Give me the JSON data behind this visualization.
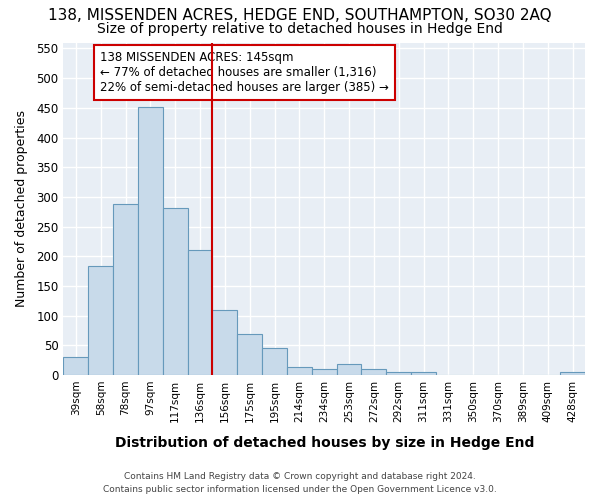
{
  "title": "138, MISSENDEN ACRES, HEDGE END, SOUTHAMPTON, SO30 2AQ",
  "subtitle": "Size of property relative to detached houses in Hedge End",
  "xlabel": "Distribution of detached houses by size in Hedge End",
  "ylabel": "Number of detached properties",
  "footer_line1": "Contains HM Land Registry data © Crown copyright and database right 2024.",
  "footer_line2": "Contains public sector information licensed under the Open Government Licence v3.0.",
  "annotation_line1": "138 MISSENDEN ACRES: 145sqm",
  "annotation_line2": "← 77% of detached houses are smaller (1,316)",
  "annotation_line3": "22% of semi-detached houses are larger (385) →",
  "categories": [
    "39sqm",
    "58sqm",
    "78sqm",
    "97sqm",
    "117sqm",
    "136sqm",
    "156sqm",
    "175sqm",
    "195sqm",
    "214sqm",
    "234sqm",
    "253sqm",
    "272sqm",
    "292sqm",
    "311sqm",
    "331sqm",
    "350sqm",
    "370sqm",
    "389sqm",
    "409sqm",
    "428sqm"
  ],
  "values": [
    30,
    184,
    288,
    452,
    282,
    211,
    109,
    70,
    46,
    14,
    11,
    19,
    10,
    5,
    5,
    0,
    0,
    0,
    0,
    0,
    6
  ],
  "bar_color": "#c8daea",
  "bar_edge_color": "#6699bb",
  "reference_line_color": "#cc0000",
  "ylim": [
    0,
    560
  ],
  "yticks": [
    0,
    50,
    100,
    150,
    200,
    250,
    300,
    350,
    400,
    450,
    500,
    550
  ],
  "background_color": "#ffffff",
  "plot_background_color": "#e8eef5",
  "grid_color": "#ffffff",
  "title_fontsize": 11,
  "subtitle_fontsize": 10,
  "annotation_box_facecolor": "#ffffff",
  "annotation_box_edgecolor": "#cc0000"
}
